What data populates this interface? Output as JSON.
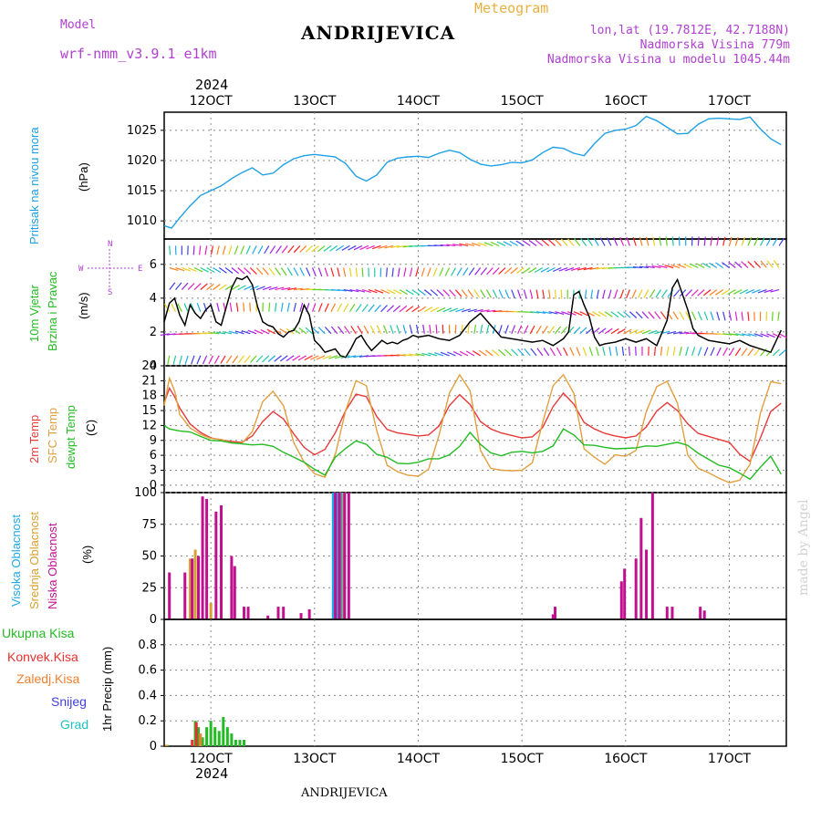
{
  "header": {
    "model_label": "Model",
    "model_name": "wrf-nmm_v3.9.1 e1km",
    "title": "ANDRIJEVICA",
    "meteogram": "Meteogram",
    "lonlat": "lon,lat (19.7812E, 42.7188N)",
    "altitude": "Nadmorska Visina 779m",
    "model_altitude": "Nadmorska Visina u modelu 1045.44m",
    "year_top": "2024",
    "year_bottom": "2024",
    "footer": "ANDRIJEVICA",
    "watermark": "made by Angel"
  },
  "x_ticks": [
    "12OCT",
    "13OCT",
    "14OCT",
    "15OCT",
    "16OCT",
    "17OCT"
  ],
  "panels": {
    "pressure": {
      "label": "Pritisak na nivou mora",
      "unit": "(hPa)",
      "color": "#1ea0e6"
    },
    "wind": {
      "label1": "10m Vjetar",
      "label2": "Brzina i Pravac",
      "unit": "(m/s)",
      "compass_n": "N",
      "compass_s": "S",
      "compass_w": "W",
      "compass_e": "E"
    },
    "temp": {
      "label1": "2m Temp",
      "label2": "SFC Temp",
      "label3": "dewpt Temp",
      "unit": "(C)"
    },
    "cloud": {
      "label1": "Visoka Oblacnost",
      "label2": "Srednja Oblacnost",
      "label3": "Niska Oblacnost",
      "unit": "(%)"
    },
    "precip": {
      "legend": [
        "Ukupna Kisa",
        "Konvek.Kisa",
        "Zaledj.Kisa",
        "Snijeg",
        "Grad"
      ],
      "legend_colors": [
        "#22bb22",
        "#e83030",
        "#f08030",
        "#4040e0",
        "#20c0c0"
      ],
      "unit": "1hr Precip (mm)"
    }
  },
  "chart_data": [
    {
      "type": "line",
      "title": "Pritisak na nivou mora",
      "ylabel": "(hPa)",
      "ylim": [
        1007,
        1028
      ],
      "yticks": [
        1010,
        1015,
        1020,
        1025
      ],
      "xlim_days": [
        11.55,
        17.55
      ],
      "series": [
        {
          "name": "Pritisak na nivou mora",
          "color": "#1ea0e6",
          "x": [
            11.55,
            11.62,
            11.7,
            11.8,
            11.9,
            12.0,
            12.1,
            12.2,
            12.3,
            12.4,
            12.5,
            12.6,
            12.7,
            12.8,
            12.9,
            13.0,
            13.1,
            13.2,
            13.3,
            13.4,
            13.5,
            13.6,
            13.7,
            13.8,
            13.9,
            14.0,
            14.1,
            14.2,
            14.3,
            14.4,
            14.5,
            14.6,
            14.7,
            14.8,
            14.9,
            15.0,
            15.1,
            15.2,
            15.3,
            15.4,
            15.5,
            15.6,
            15.7,
            15.8,
            15.9,
            16.0,
            16.1,
            16.2,
            16.3,
            16.4,
            16.5,
            16.6,
            16.7,
            16.8,
            16.9,
            17.0,
            17.1,
            17.2,
            17.3,
            17.4,
            17.5
          ],
          "y": [
            1009.2,
            1008.8,
            1010.5,
            1012.5,
            1014.2,
            1015.0,
            1015.8,
            1017.0,
            1018.0,
            1018.8,
            1017.6,
            1017.9,
            1019.3,
            1020.3,
            1020.8,
            1021.0,
            1020.8,
            1020.6,
            1019.5,
            1017.4,
            1016.6,
            1017.6,
            1019.7,
            1020.4,
            1020.6,
            1020.7,
            1020.5,
            1021.2,
            1021.7,
            1021.3,
            1020.2,
            1019.4,
            1019.1,
            1019.3,
            1019.7,
            1019.6,
            1020.1,
            1021.3,
            1022.2,
            1022.0,
            1021.2,
            1020.8,
            1022.8,
            1024.5,
            1025.0,
            1025.2,
            1025.8,
            1027.3,
            1026.6,
            1025.5,
            1024.4,
            1024.5,
            1026.0,
            1026.9,
            1027.0,
            1026.9,
            1026.8,
            1027.2,
            1025.2,
            1023.6,
            1022.6
          ]
        }
      ]
    },
    {
      "type": "line",
      "title": "10m Vjetar Brzina i Pravac",
      "ylabel": "(m/s)",
      "ylim": [
        0,
        7.5
      ],
      "yticks": [
        0,
        2,
        4,
        6
      ],
      "series": [
        {
          "name": "Brzina",
          "color": "#000000",
          "x": [
            11.55,
            11.6,
            11.65,
            11.7,
            11.75,
            11.8,
            11.85,
            11.9,
            11.95,
            12.0,
            12.05,
            12.1,
            12.15,
            12.2,
            12.25,
            12.3,
            12.35,
            12.4,
            12.45,
            12.5,
            12.55,
            12.6,
            12.65,
            12.7,
            12.75,
            12.8,
            12.85,
            12.9,
            12.95,
            13.0,
            13.05,
            13.1,
            13.15,
            13.2,
            13.25,
            13.3,
            13.35,
            13.4,
            13.45,
            13.5,
            13.55,
            13.6,
            13.65,
            13.7,
            13.75,
            13.8,
            13.85,
            13.9,
            13.95,
            14.0,
            14.1,
            14.2,
            14.3,
            14.4,
            14.5,
            14.6,
            14.7,
            14.8,
            14.9,
            15.0,
            15.1,
            15.2,
            15.3,
            15.4,
            15.45,
            15.5,
            15.55,
            15.6,
            15.65,
            15.7,
            15.75,
            15.8,
            15.9,
            16.0,
            16.1,
            16.2,
            16.3,
            16.4,
            16.45,
            16.5,
            16.55,
            16.6,
            16.65,
            16.7,
            16.8,
            16.9,
            17.0,
            17.1,
            17.2,
            17.3,
            17.4,
            17.5
          ],
          "y": [
            2.6,
            3.7,
            4.0,
            3.0,
            2.4,
            3.6,
            3.1,
            2.8,
            3.3,
            3.6,
            2.6,
            2.4,
            3.5,
            4.6,
            5.2,
            5.1,
            5.3,
            4.8,
            3.5,
            2.6,
            2.4,
            2.3,
            1.9,
            1.7,
            2.0,
            2.1,
            2.6,
            3.6,
            3.0,
            1.5,
            1.2,
            0.8,
            0.9,
            1.0,
            0.6,
            0.5,
            1.0,
            1.6,
            1.8,
            1.3,
            0.9,
            1.2,
            1.5,
            1.3,
            1.4,
            1.3,
            1.5,
            1.6,
            1.8,
            1.7,
            1.8,
            1.6,
            1.5,
            1.8,
            2.6,
            3.1,
            2.4,
            1.7,
            1.6,
            1.5,
            1.4,
            1.5,
            1.2,
            1.6,
            2.0,
            4.2,
            4.4,
            3.6,
            2.9,
            1.7,
            1.2,
            1.3,
            1.4,
            1.6,
            1.4,
            1.6,
            1.2,
            2.7,
            4.6,
            5.1,
            4.2,
            3.3,
            2.2,
            1.8,
            1.5,
            1.4,
            1.3,
            1.5,
            1.2,
            1.0,
            0.8,
            2.1
          ]
        }
      ]
    },
    {
      "type": "line",
      "title": "2m Temp / SFC Temp / dewpt Temp",
      "ylabel": "(C)",
      "ylim": [
        -1.5,
        24
      ],
      "yticks": [
        0,
        3,
        6,
        9,
        12,
        15,
        18,
        21,
        24
      ],
      "series": [
        {
          "name": "2m Temp",
          "color": "#e83a3a",
          "x": [
            11.55,
            11.6,
            11.65,
            11.7,
            11.8,
            11.9,
            12.0,
            12.1,
            12.2,
            12.3,
            12.4,
            12.5,
            12.6,
            12.7,
            12.8,
            12.9,
            13.0,
            13.1,
            13.2,
            13.3,
            13.4,
            13.5,
            13.6,
            13.7,
            13.8,
            13.9,
            14.0,
            14.1,
            14.2,
            14.3,
            14.4,
            14.5,
            14.6,
            14.7,
            14.8,
            14.9,
            15.0,
            15.1,
            15.2,
            15.3,
            15.4,
            15.5,
            15.6,
            15.7,
            15.8,
            15.9,
            16.0,
            16.1,
            16.2,
            16.3,
            16.4,
            16.5,
            16.6,
            16.7,
            16.8,
            16.9,
            17.0,
            17.1,
            17.2,
            17.3,
            17.4,
            17.5
          ],
          "y": [
            16.5,
            19.5,
            17.8,
            15.5,
            12.3,
            10.6,
            9.5,
            9.1,
            8.8,
            8.6,
            9.9,
            12.8,
            14.8,
            13.3,
            10.3,
            7.6,
            6.1,
            7.2,
            10.5,
            15.0,
            18.3,
            17.8,
            13.8,
            11.2,
            10.5,
            10.2,
            9.9,
            10.1,
            11.9,
            16.0,
            18.2,
            16.2,
            12.8,
            11.3,
            10.5,
            10.0,
            9.5,
            9.7,
            11.6,
            15.8,
            18.5,
            16.3,
            12.6,
            11.3,
            10.4,
            9.9,
            9.5,
            9.9,
            11.7,
            14.9,
            16.6,
            15.0,
            12.3,
            10.4,
            9.8,
            9.2,
            8.6,
            6.2,
            4.8,
            9.5,
            14.8,
            16.5
          ]
        },
        {
          "name": "SFC Temp",
          "color": "#e0a040",
          "x": [
            11.55,
            11.6,
            11.65,
            11.7,
            11.8,
            11.9,
            12.0,
            12.1,
            12.2,
            12.3,
            12.4,
            12.5,
            12.6,
            12.7,
            12.8,
            12.9,
            13.0,
            13.1,
            13.2,
            13.3,
            13.4,
            13.5,
            13.6,
            13.7,
            13.8,
            13.9,
            14.0,
            14.1,
            14.2,
            14.3,
            14.4,
            14.5,
            14.6,
            14.7,
            14.8,
            14.9,
            15.0,
            15.1,
            15.2,
            15.3,
            15.4,
            15.5,
            15.6,
            15.7,
            15.8,
            15.9,
            16.0,
            16.1,
            16.2,
            16.3,
            16.4,
            16.5,
            16.6,
            16.7,
            16.8,
            16.9,
            17.0,
            17.1,
            17.2,
            17.3,
            17.4,
            17.5
          ],
          "y": [
            16.0,
            21.5,
            19.0,
            14.2,
            11.5,
            10.2,
            9.4,
            9.2,
            8.5,
            8.4,
            10.8,
            16.8,
            18.9,
            16.0,
            8.5,
            4.6,
            2.3,
            1.6,
            6.1,
            15.0,
            21.0,
            20.0,
            11.0,
            4.0,
            2.7,
            2.0,
            1.8,
            3.2,
            10.0,
            18.5,
            22.2,
            19.0,
            7.0,
            3.4,
            3.0,
            2.9,
            3.0,
            4.5,
            12.6,
            20.0,
            22.2,
            18.5,
            7.3,
            5.6,
            4.2,
            6.1,
            5.8,
            7.0,
            14.8,
            19.8,
            20.9,
            16.5,
            6.0,
            3.4,
            2.5,
            1.4,
            0.5,
            1.0,
            4.2,
            14.5,
            20.8,
            20.4
          ]
        },
        {
          "name": "dewpt Temp",
          "color": "#22bb22",
          "x": [
            11.55,
            11.6,
            11.7,
            11.8,
            11.9,
            12.0,
            12.1,
            12.2,
            12.3,
            12.4,
            12.5,
            12.6,
            12.7,
            12.8,
            12.9,
            13.0,
            13.1,
            13.2,
            13.3,
            13.4,
            13.5,
            13.6,
            13.7,
            13.8,
            13.9,
            14.0,
            14.1,
            14.2,
            14.3,
            14.4,
            14.5,
            14.6,
            14.7,
            14.8,
            14.9,
            15.0,
            15.1,
            15.2,
            15.3,
            15.4,
            15.5,
            15.6,
            15.7,
            15.8,
            15.9,
            16.0,
            16.1,
            16.2,
            16.3,
            16.4,
            16.5,
            16.6,
            16.7,
            16.8,
            16.9,
            17.0,
            17.1,
            17.2,
            17.3,
            17.4,
            17.5
          ],
          "y": [
            12.0,
            11.3,
            10.9,
            10.7,
            9.8,
            9.0,
            8.9,
            8.5,
            8.3,
            8.1,
            8.2,
            7.8,
            6.6,
            5.6,
            4.6,
            3.2,
            2.0,
            5.6,
            7.4,
            8.9,
            8.2,
            6.2,
            5.6,
            4.4,
            4.3,
            4.6,
            5.3,
            5.3,
            6.1,
            7.8,
            10.6,
            8.2,
            6.5,
            5.9,
            6.6,
            6.8,
            6.5,
            6.8,
            7.9,
            11.3,
            10.1,
            8.1,
            8.0,
            7.6,
            7.3,
            7.4,
            7.5,
            7.9,
            7.8,
            8.2,
            8.6,
            8.0,
            6.4,
            5.2,
            4.0,
            3.5,
            2.4,
            1.2,
            3.6,
            5.8,
            2.2
          ]
        }
      ]
    },
    {
      "type": "bar",
      "title": "Oblacnost",
      "ylabel": "(%)",
      "ylim": [
        0,
        100
      ],
      "yticks": [
        0,
        25,
        50,
        75,
        100
      ],
      "series": [
        {
          "name": "Visoka Oblacnost",
          "color": "#20a8e0",
          "x": [
            13.18,
            13.22,
            13.26
          ],
          "values": [
            100,
            100,
            100
          ]
        },
        {
          "name": "Srednja Oblacnost",
          "color": "#d8a030",
          "x": [
            11.8,
            11.85,
            12.0,
            13.2,
            13.24,
            13.28
          ],
          "values": [
            48,
            55,
            13,
            60,
            100,
            100
          ]
        },
        {
          "name": "Niska Oblacnost",
          "color": "#c01090",
          "x": [
            11.6,
            11.75,
            11.82,
            11.88,
            11.92,
            11.96,
            12.05,
            12.1,
            12.2,
            12.23,
            12.32,
            12.36,
            12.55,
            12.65,
            12.7,
            12.87,
            12.95,
            13.2,
            13.24,
            13.29,
            13.33,
            15.3,
            15.32,
            15.96,
            15.99,
            16.1,
            16.15,
            16.2,
            16.26,
            16.4,
            16.45,
            16.72,
            16.76
          ],
          "values": [
            37,
            37,
            48,
            50,
            97,
            95,
            85,
            90,
            50,
            42,
            10,
            10,
            3,
            10,
            10,
            5,
            8,
            100,
            100,
            100,
            100,
            4,
            10,
            30,
            40,
            48,
            80,
            55,
            100,
            10,
            10,
            10,
            7
          ]
        }
      ]
    },
    {
      "type": "bar",
      "title": "1hr Precip",
      "ylabel": "1hr Precip (mm)",
      "ylim": [
        0,
        1.0
      ],
      "yticks": [
        0,
        0.2,
        0.4,
        0.6,
        0.8
      ],
      "series": [
        {
          "name": "Ukupna Kisa",
          "color": "#22bb22",
          "x": [
            11.58,
            11.85,
            11.88,
            11.92,
            11.96,
            12.0,
            12.04,
            12.08,
            12.12,
            12.16,
            12.2,
            12.24,
            12.28,
            12.32
          ],
          "values": [
            0.01,
            0.2,
            0.15,
            0.07,
            0.15,
            0.2,
            0.15,
            0.12,
            0.23,
            0.15,
            0.1,
            0.05,
            0.05,
            0.05
          ]
        },
        {
          "name": "Konvek.Kisa",
          "color": "#e83030",
          "x": [
            11.82,
            11.86
          ],
          "values": [
            0.05,
            0.19
          ]
        },
        {
          "name": "Zaledj.Kisa",
          "color": "#f08030",
          "x": [
            11.57,
            11.9
          ],
          "values": [
            0.01,
            0.1
          ]
        }
      ]
    }
  ]
}
